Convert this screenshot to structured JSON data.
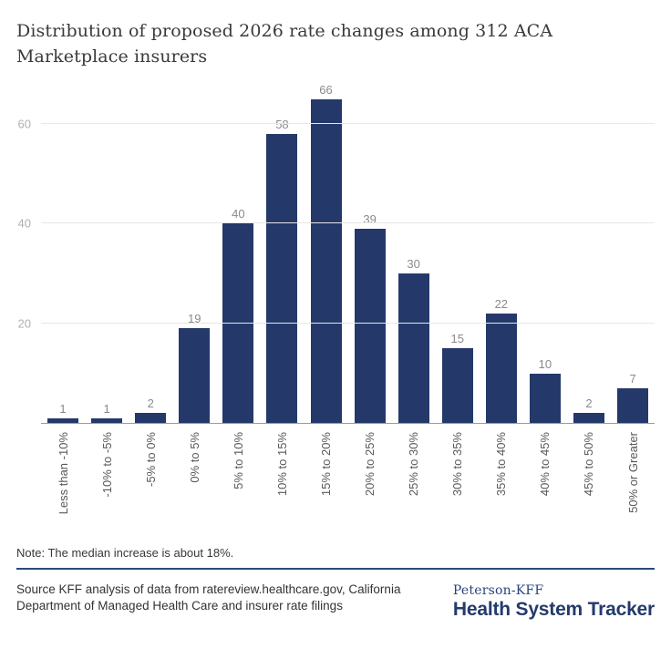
{
  "title": "Distribution of proposed 2026 rate changes among 312 ACA Marketplace insurers",
  "chart_data": {
    "type": "bar",
    "categories": [
      "Less than -10%",
      "-10% to -5%",
      "-5% to 0%",
      "0% to 5%",
      "5% to 10%",
      "10% to 15%",
      "15% to 20%",
      "20% to 25%",
      "25% to 30%",
      "30% to 35%",
      "35% to 40%",
      "40% to 45%",
      "45% to 50%",
      "50% or Greater"
    ],
    "values": [
      1,
      1,
      2,
      19,
      40,
      58,
      66,
      39,
      30,
      15,
      22,
      10,
      2,
      7
    ],
    "title": "Distribution of proposed 2026 rate changes among 312 ACA Marketplace insurers",
    "xlabel": "",
    "ylabel": "",
    "yticks": [
      20,
      40,
      60
    ],
    "ylim": [
      0,
      68
    ],
    "grid": true,
    "legend": "none",
    "value_labels": true,
    "bar_color": "#24396a"
  },
  "note": "Note: The median increase is about 18%.",
  "source": "Source KFF analysis of data from ratereview.healthcare.gov, California Department of Managed Health Care and insurer rate filings",
  "branding": {
    "line1": "Peterson-KFF",
    "line2": "Health System Tracker"
  },
  "colors": {
    "bar": "#24396a",
    "divider": "#2b4a7a",
    "brand_navy": "#27427c",
    "gridline": "#e7e7e7",
    "axis_line": "#9b9b9b",
    "y_tick_text": "#b0b0b0",
    "x_tick_text": "#595959",
    "value_label_text": "#8a8a8a",
    "title_text": "#3a3a3a"
  }
}
